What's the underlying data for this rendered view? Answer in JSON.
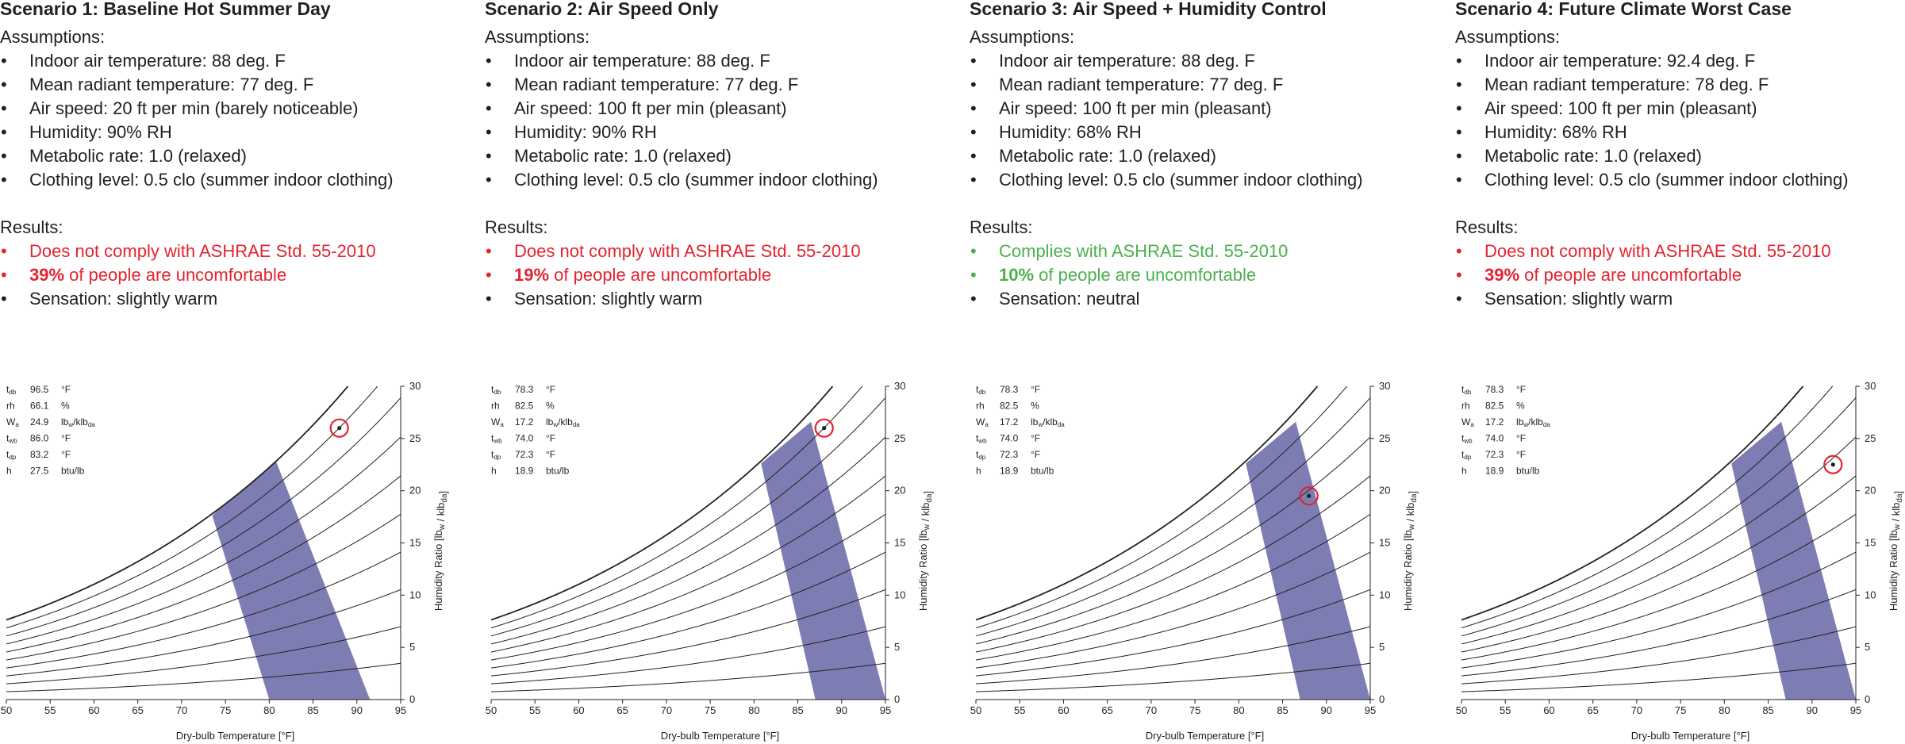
{
  "colors": {
    "red": "#e32330",
    "green": "#4bb04e",
    "zone": "#7e7db3",
    "text": "#231f20"
  },
  "scenarios": [
    {
      "title": "Scenario 1:  Baseline Hot Summer Day",
      "assumptions_heading": "Assumptions:",
      "assumptions": [
        "Indoor air temperature: 88 deg. F",
        "Mean radiant temperature: 77 deg. F",
        "Air speed: 20 ft per min (barely noticeable)",
        "Humidity: 90% RH",
        "Metabolic rate: 1.0 (relaxed)",
        "Clothing level: 0.5 clo (summer indoor clothing)"
      ],
      "results_heading": "Results:",
      "compliance": "Does not comply with ASHRAE Std. 55-2010",
      "uncomfortable_pct": "39%",
      "uncomfortable_text": " of people are uncomfortable",
      "sensation": "Sensation: slightly warm",
      "status_color": "red",
      "readout": {
        "tdb": "96.5",
        "rh": "66.1",
        "wa": "24.9",
        "twb": "86.0",
        "tdp": "83.2",
        "h": "27.5"
      }
    },
    {
      "title": "Scenario 2: Air Speed Only",
      "assumptions_heading": "Assumptions:",
      "assumptions": [
        "Indoor air temperature: 88 deg. F",
        "Mean radiant temperature: 77 deg. F",
        "Air speed: 100 ft per min (pleasant)",
        "Humidity: 90% RH",
        "Metabolic rate: 1.0 (relaxed)",
        "Clothing level: 0.5 clo (summer indoor clothing)"
      ],
      "results_heading": "Results:",
      "compliance": "Does not comply with ASHRAE Std. 55-2010",
      "uncomfortable_pct": "19%",
      "uncomfortable_text": " of people are uncomfortable",
      "sensation": "Sensation: slightly warm",
      "status_color": "red",
      "readout": {
        "tdb": "78.3",
        "rh": "82.5",
        "wa": "17.2",
        "twb": "74.0",
        "tdp": "72.3",
        "h": "18.9"
      }
    },
    {
      "title": "Scenario 3: Air Speed + Humidity Control",
      "assumptions_heading": "Assumptions:",
      "assumptions": [
        "Indoor air temperature: 88 deg. F",
        "Mean radiant temperature: 77 deg. F",
        "Air speed: 100 ft per min (pleasant)",
        "Humidity: 68% RH",
        "Metabolic rate: 1.0 (relaxed)",
        "Clothing level: 0.5 clo (summer indoor clothing)"
      ],
      "results_heading": "Results:",
      "compliance": "Complies with ASHRAE Std. 55-2010",
      "uncomfortable_pct": "10%",
      "uncomfortable_text": " of people are uncomfortable",
      "sensation": "Sensation: neutral",
      "status_color": "green",
      "readout": {
        "tdb": "78.3",
        "rh": "82.5",
        "wa": "17.2",
        "twb": "74.0",
        "tdp": "72.3",
        "h": "18.9"
      }
    },
    {
      "title": "Scenario 4: Future Climate Worst Case",
      "assumptions_heading": "Assumptions:",
      "assumptions": [
        "Indoor air temperature: 92.4 deg. F",
        "Mean radiant temperature: 78 deg. F",
        "Air speed: 100 ft per min (pleasant)",
        "Humidity: 68% RH",
        "Metabolic rate: 1.0 (relaxed)",
        "Clothing level: 0.5 clo (summer indoor clothing)"
      ],
      "results_heading": "Results:",
      "compliance": "Does not comply with ASHRAE Std. 55-2010",
      "uncomfortable_pct": "39%",
      "uncomfortable_text": " of people are uncomfortable",
      "sensation": "Sensation: slightly warm",
      "status_color": "red",
      "readout": {
        "tdb": "78.3",
        "rh": "82.5",
        "wa": "17.2",
        "twb": "74.0",
        "tdp": "72.3",
        "h": "18.9"
      }
    }
  ],
  "readout_labels": {
    "tdb": "t",
    "tdb_sub": "db",
    "rh": "rh",
    "wa": "W",
    "wa_sub": "a",
    "twb": "t",
    "twb_sub": "wb",
    "tdp": "t",
    "tdp_sub": "dp",
    "h": "h"
  },
  "readout_units": {
    "tdb": "°F",
    "rh": "%",
    "wa": "lb",
    "wa_sub1": "w",
    "wa_mid": "/klb",
    "wa_sub2": "da",
    "twb": "°F",
    "tdp": "°F",
    "h": "btu/lb"
  },
  "chart_data": [
    {
      "type": "scatter",
      "chart_kind": "psychrometric",
      "xlabel": "Dry-bulb Temperature [°F]",
      "ylabel": "Humidity Ratio [lbw / klbda]",
      "xlim": [
        50,
        95
      ],
      "ylim": [
        0,
        30
      ],
      "x_ticks": [
        50,
        55,
        60,
        65,
        70,
        75,
        80,
        85,
        90,
        95
      ],
      "y_ticks": [
        0,
        5,
        10,
        15,
        20,
        25,
        30
      ],
      "rh_curves": [
        10,
        20,
        30,
        40,
        50,
        60,
        70,
        80,
        90,
        100
      ],
      "comfort_zone": [
        [
          73.5,
          17.6
        ],
        [
          80.5,
          23.4
        ],
        [
          91.5,
          0
        ],
        [
          80.0,
          0
        ]
      ],
      "point": [
        88,
        26
      ]
    },
    {
      "type": "scatter",
      "chart_kind": "psychrometric",
      "xlabel": "Dry-bulb Temperature [°F]",
      "ylabel": "Humidity Ratio [lbw / klbda]",
      "xlim": [
        50,
        95
      ],
      "ylim": [
        0,
        30
      ],
      "x_ticks": [
        50,
        55,
        60,
        65,
        70,
        75,
        80,
        85,
        90,
        95
      ],
      "y_ticks": [
        0,
        5,
        10,
        15,
        20,
        25,
        30
      ],
      "rh_curves": [
        10,
        20,
        30,
        40,
        50,
        60,
        70,
        80,
        90,
        100
      ],
      "comfort_zone": [
        [
          80.8,
          22.6
        ],
        [
          86.5,
          26.6
        ],
        [
          95,
          0
        ],
        [
          87,
          0
        ]
      ],
      "point": [
        88,
        26
      ]
    },
    {
      "type": "scatter",
      "chart_kind": "psychrometric",
      "xlabel": "Dry-bulb Temperature [°F]",
      "ylabel": "Humidity Ratio [lbw / klbda]",
      "xlim": [
        50,
        95
      ],
      "ylim": [
        0,
        30
      ],
      "x_ticks": [
        50,
        55,
        60,
        65,
        70,
        75,
        80,
        85,
        90,
        95
      ],
      "y_ticks": [
        0,
        5,
        10,
        15,
        20,
        25,
        30
      ],
      "rh_curves": [
        10,
        20,
        30,
        40,
        50,
        60,
        70,
        80,
        90,
        100
      ],
      "comfort_zone": [
        [
          80.8,
          22.6
        ],
        [
          86.5,
          26.6
        ],
        [
          95,
          0
        ],
        [
          87,
          0
        ]
      ],
      "point": [
        88,
        19.5
      ]
    },
    {
      "type": "scatter",
      "chart_kind": "psychrometric",
      "xlabel": "Dry-bulb Temperature [°F]",
      "ylabel": "Humidity Ratio [lbw / klbda]",
      "xlim": [
        50,
        95
      ],
      "ylim": [
        0,
        30
      ],
      "x_ticks": [
        50,
        55,
        60,
        65,
        70,
        75,
        80,
        85,
        90,
        95
      ],
      "y_ticks": [
        0,
        5,
        10,
        15,
        20,
        25,
        30
      ],
      "rh_curves": [
        10,
        20,
        30,
        40,
        50,
        60,
        70,
        80,
        90,
        100
      ],
      "comfort_zone": [
        [
          80.8,
          22.6
        ],
        [
          86.5,
          26.6
        ],
        [
          95,
          0
        ],
        [
          87,
          0
        ]
      ],
      "point": [
        92.4,
        22.5
      ]
    }
  ]
}
